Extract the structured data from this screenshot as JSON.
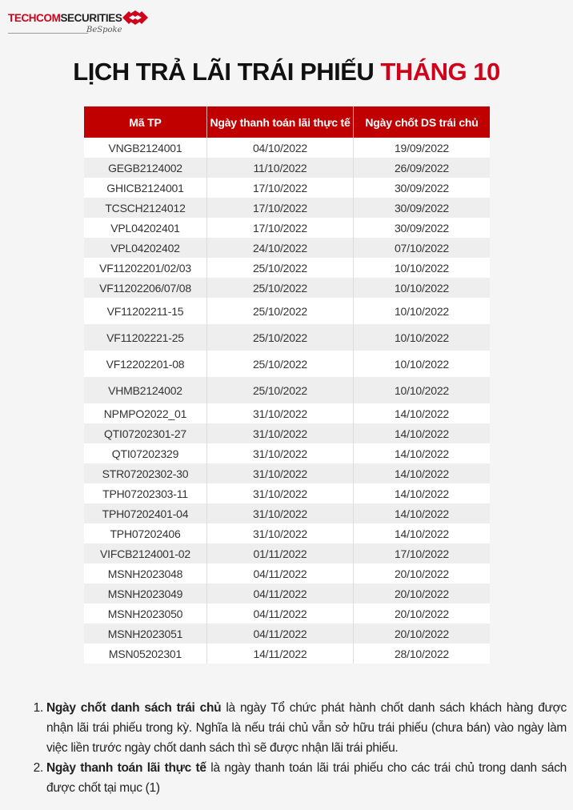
{
  "logo": {
    "text_part1": "TECHCOM",
    "text_part2": "SECURITIES",
    "tagline": "BeSpoke",
    "brand_color": "#d0021b"
  },
  "title": {
    "main": "LỊCH TRẢ LÃI TRÁI PHIẾU",
    "accent": "THÁNG 10"
  },
  "table": {
    "headers": [
      "Mã TP",
      "Ngày thanh toán lãi thực tế",
      "Ngày chốt DS trái chủ"
    ],
    "rows": [
      [
        "VNGB2124001",
        "04/10/2022",
        "19/09/2022"
      ],
      [
        "GEGB2124002",
        "11/10/2022",
        "26/09/2022"
      ],
      [
        "GHICB2124001",
        "17/10/2022",
        "30/09/2022"
      ],
      [
        "TCSCH2124012",
        "17/10/2022",
        "30/09/2022"
      ],
      [
        "VPL04202401",
        "17/10/2022",
        "30/09/2022"
      ],
      [
        "VPL04202402",
        "24/10/2022",
        "07/10/2022"
      ],
      [
        "VF11202201/02/03",
        "25/10/2022",
        "10/10/2022"
      ],
      [
        "VF11202206/07/08",
        "25/10/2022",
        "10/10/2022"
      ],
      [
        "VF11202211-15",
        "25/10/2022",
        "10/10/2022"
      ],
      [
        "VF11202221-25",
        "25/10/2022",
        "10/10/2022"
      ],
      [
        "VF12202201-08",
        "25/10/2022",
        "10/10/2022"
      ],
      [
        "VHMB2124002",
        "25/10/2022",
        "10/10/2022"
      ],
      [
        "NPMPO2022_01",
        "31/10/2022",
        "14/10/2022"
      ],
      [
        "QTI07202301-27",
        "31/10/2022",
        "14/10/2022"
      ],
      [
        "QTI07202329",
        "31/10/2022",
        "14/10/2022"
      ],
      [
        "STR07202302-30",
        "31/10/2022",
        "14/10/2022"
      ],
      [
        "TPH07202303-11",
        "31/10/2022",
        "14/10/2022"
      ],
      [
        "TPH07202401-04",
        "31/10/2022",
        "14/10/2022"
      ],
      [
        "TPH07202406",
        "31/10/2022",
        "14/10/2022"
      ],
      [
        "VIFCB2124001-02",
        "01/11/2022",
        "17/10/2022"
      ],
      [
        "MSNH2023048",
        "04/11/2022",
        "20/10/2022"
      ],
      [
        "MSNH2023049",
        "04/11/2022",
        "20/10/2022"
      ],
      [
        "MSNH2023050",
        "04/11/2022",
        "20/10/2022"
      ],
      [
        "MSNH2023051",
        "04/11/2022",
        "20/10/2022"
      ],
      [
        "MSN05202301",
        "14/11/2022",
        "28/10/2022"
      ]
    ]
  },
  "notes": [
    {
      "term": "Ngày chốt danh sách trái chủ",
      "text": " là ngày Tổ chức phát hành chốt danh sách khách hàng được nhận lãi trái phiếu trong kỳ. Nghĩa là nếu trái chủ vẫn sở hữu trái phiếu (chưa bán) vào ngày làm việc liền trước ngày chốt danh sách thì sẽ được nhận lãi trái phiếu."
    },
    {
      "term": "Ngày thanh toán lãi thực tế",
      "text": " là ngày thanh toán lãi trái phiếu cho các trái chủ trong danh sách được chốt tại mục (1)"
    }
  ]
}
